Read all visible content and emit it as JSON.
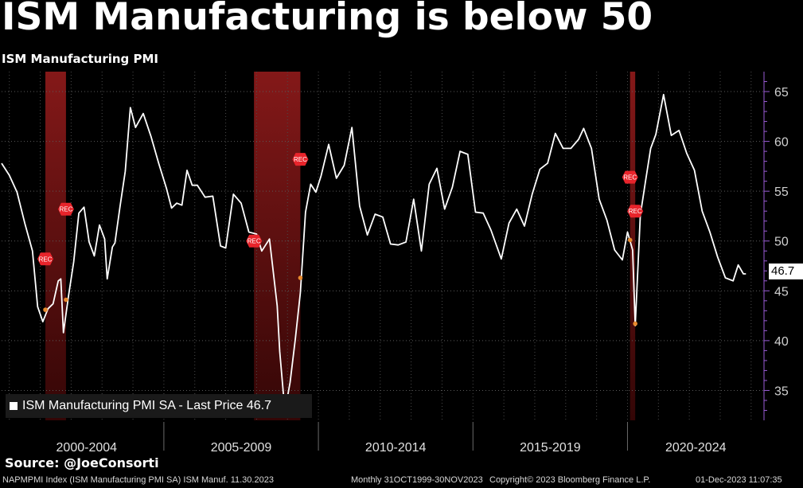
{
  "header": {
    "title": "ISM Manufacturing is below 50",
    "subtitle": "ISM Manufacturing PMI"
  },
  "source": "Source: @JoeConsorti",
  "footer": {
    "left": "NAPMPMI Index (ISM Manufacturing PMI SA) ISM Manuf. 11.30.2023",
    "middle": "Monthly 31OCT1999-30NOV2023",
    "right": "Copyright© 2023 Bloomberg Finance L.P.",
    "timestamp": "01-Dec-2023 11:07:35"
  },
  "colors": {
    "background": "#000000",
    "line": "#ffffff",
    "recession": "#8b1a1a",
    "rec_badge": "#e8242b",
    "marker": "#e88a2e",
    "axis": "#9a5cd6"
  },
  "chart_data": {
    "type": "line",
    "title": "ISM Manufacturing is below 50",
    "subtitle": "ISM Manufacturing PMI",
    "ylim": [
      32,
      67
    ],
    "yticks": [
      35,
      40,
      45,
      50,
      55,
      60,
      65
    ],
    "xlim": [
      "1999-10",
      "2024-06"
    ],
    "period_labels": [
      "2000-2004",
      "2005-2009",
      "2010-2014",
      "2015-2019",
      "2020-2024"
    ],
    "grid": true,
    "legend": "bottom-left",
    "series": [
      {
        "name": "ISM Manufacturing PMI SA - Last Price 46.7",
        "last_value": 46.7,
        "x": [
          "1999-10",
          "2000-01",
          "2000-04",
          "2000-07",
          "2000-10",
          "2000-12",
          "2001-02",
          "2001-04",
          "2001-06",
          "2001-08",
          "2001-09",
          "2001-10",
          "2001-12",
          "2002-02",
          "2002-04",
          "2002-06",
          "2002-08",
          "2002-10",
          "2002-12",
          "2003-02",
          "2003-03",
          "2003-05",
          "2003-06",
          "2003-08",
          "2003-10",
          "2003-12",
          "2004-02",
          "2004-05",
          "2004-08",
          "2004-11",
          "2005-02",
          "2005-04",
          "2005-06",
          "2005-08",
          "2005-10",
          "2005-12",
          "2006-02",
          "2006-05",
          "2006-08",
          "2006-11",
          "2007-01",
          "2007-04",
          "2007-07",
          "2007-10",
          "2008-01",
          "2008-03",
          "2008-06",
          "2008-09",
          "2008-10",
          "2008-12",
          "2009-02",
          "2009-04",
          "2009-06",
          "2009-08",
          "2009-10",
          "2009-12",
          "2010-02",
          "2010-05",
          "2010-08",
          "2010-11",
          "2011-02",
          "2011-05",
          "2011-08",
          "2011-11",
          "2012-02",
          "2012-05",
          "2012-08",
          "2012-11",
          "2013-02",
          "2013-05",
          "2013-08",
          "2013-11",
          "2014-02",
          "2014-05",
          "2014-08",
          "2014-11",
          "2015-02",
          "2015-05",
          "2015-08",
          "2015-12",
          "2016-03",
          "2016-06",
          "2016-09",
          "2016-12",
          "2017-03",
          "2017-06",
          "2017-09",
          "2017-12",
          "2018-03",
          "2018-06",
          "2018-08",
          "2018-11",
          "2019-02",
          "2019-05",
          "2019-08",
          "2019-11",
          "2020-01",
          "2020-03",
          "2020-04",
          "2020-06",
          "2020-08",
          "2020-10",
          "2020-12",
          "2021-03",
          "2021-06",
          "2021-09",
          "2021-12",
          "2022-03",
          "2022-06",
          "2022-09",
          "2022-12",
          "2023-03",
          "2023-06",
          "2023-08",
          "2023-10",
          "2023-11"
        ],
        "values": [
          57.8,
          56.6,
          54.9,
          51.8,
          49.0,
          43.4,
          41.9,
          43.2,
          43.7,
          46.0,
          46.2,
          40.8,
          44.5,
          47.9,
          52.8,
          53.4,
          49.9,
          48.5,
          51.6,
          50.2,
          46.2,
          49.4,
          49.8,
          53.5,
          57.0,
          63.4,
          61.4,
          62.8,
          60.5,
          57.8,
          55.3,
          53.3,
          53.8,
          53.6,
          57.1,
          55.6,
          55.6,
          54.4,
          54.5,
          49.5,
          49.3,
          54.7,
          53.8,
          50.9,
          50.7,
          49.0,
          50.2,
          43.5,
          38.9,
          32.9,
          35.8,
          40.1,
          44.8,
          52.9,
          55.7,
          54.9,
          56.5,
          59.7,
          56.3,
          57.6,
          61.4,
          53.5,
          50.6,
          52.7,
          52.4,
          49.7,
          49.6,
          49.9,
          54.2,
          49.0,
          55.7,
          57.3,
          53.2,
          55.4,
          59.0,
          58.7,
          52.9,
          52.8,
          51.1,
          48.2,
          51.8,
          53.2,
          51.5,
          54.7,
          57.2,
          57.8,
          60.8,
          59.3,
          59.3,
          60.2,
          61.3,
          59.3,
          54.2,
          52.1,
          49.1,
          48.1,
          50.9,
          49.1,
          41.5,
          52.6,
          56.0,
          59.3,
          60.7,
          64.7,
          60.6,
          61.1,
          58.8,
          57.1,
          53.0,
          50.9,
          48.4,
          46.3,
          46.0,
          47.6,
          46.7,
          46.7
        ]
      }
    ],
    "recessions": [
      {
        "start": "2001-03",
        "end": "2001-11"
      },
      {
        "start": "2007-12",
        "end": "2009-06"
      },
      {
        "start": "2020-02",
        "end": "2020-04"
      }
    ],
    "annotations": [
      {
        "text": "REC",
        "x": "2001-03",
        "y": 48.2
      },
      {
        "text": "REC",
        "x": "2001-11",
        "y": 53.2
      },
      {
        "text": "REC",
        "x": "2007-12",
        "y": 50.0
      },
      {
        "text": "REC",
        "x": "2009-06",
        "y": 58.2
      },
      {
        "text": "REC",
        "x": "2020-02",
        "y": 56.4
      },
      {
        "text": "REC",
        "x": "2020-04",
        "y": 53.0
      }
    ],
    "markers": [
      {
        "x": "2001-03",
        "y": 43.1
      },
      {
        "x": "2001-11",
        "y": 44.1
      },
      {
        "x": "2007-12",
        "y": 50.0
      },
      {
        "x": "2009-06",
        "y": 46.3
      },
      {
        "x": "2020-02",
        "y": 50.1
      },
      {
        "x": "2020-04",
        "y": 41.7
      }
    ]
  }
}
